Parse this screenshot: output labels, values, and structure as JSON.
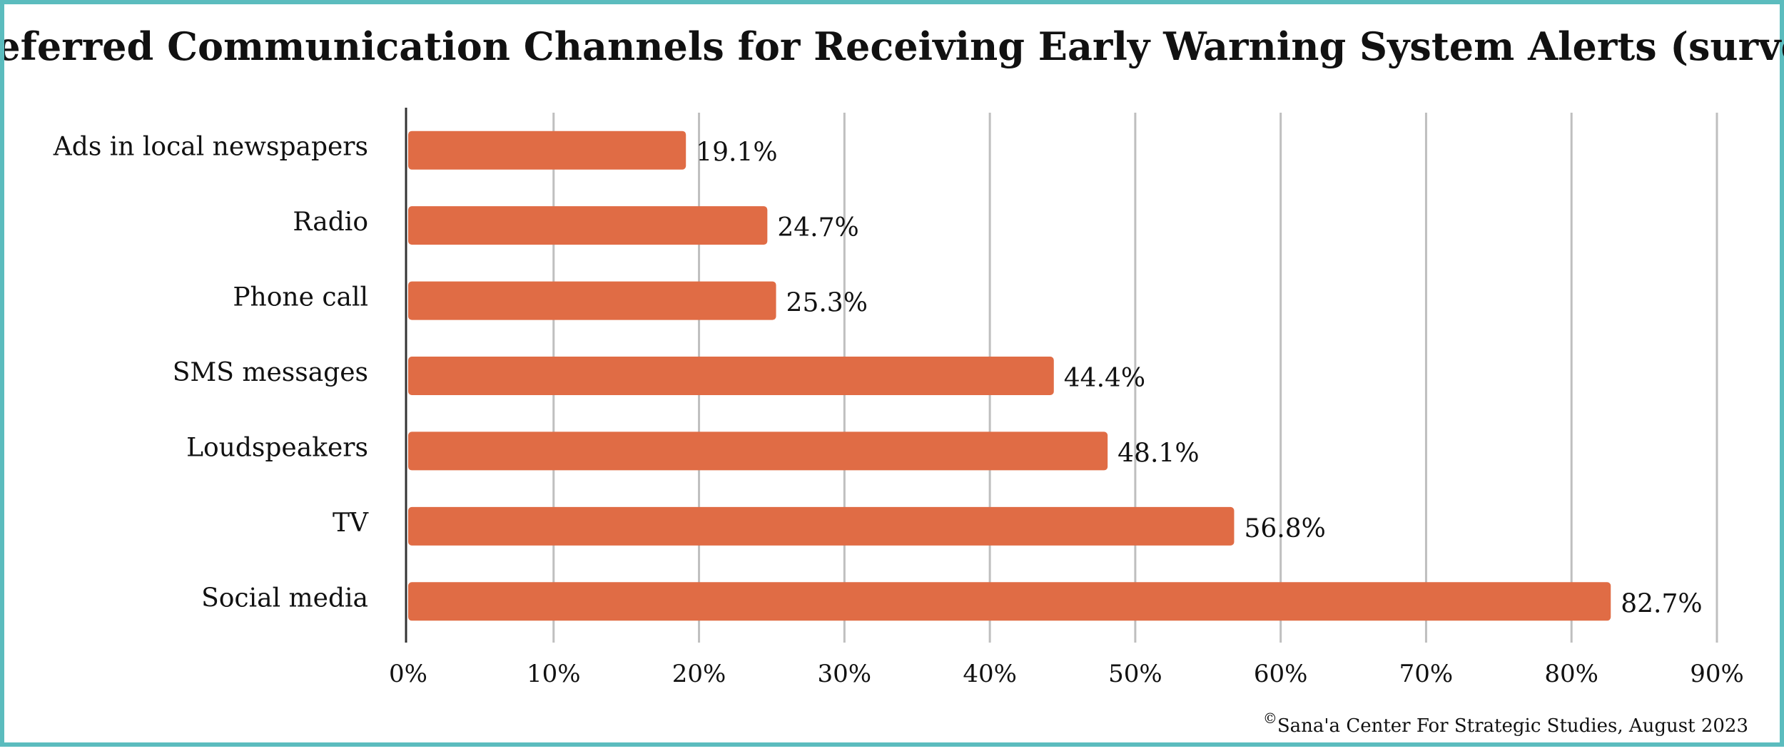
{
  "chart_data": {
    "type": "bar",
    "orientation": "horizontal",
    "title": "Preferred Communication Channels for Receiving Early Warning System Alerts (survey)",
    "categories": [
      "Ads in local newspapers",
      "Radio",
      "Phone call",
      "SMS messages",
      "Loudspeakers",
      "TV",
      "Social media"
    ],
    "values": [
      19.1,
      24.7,
      25.3,
      44.4,
      48.1,
      56.8,
      82.7
    ],
    "data_labels": [
      "19.1%",
      "24.7%",
      "25.3%",
      "44.4%",
      "48.1%",
      "56.8%",
      "82.7%"
    ],
    "xlim": [
      0,
      90
    ],
    "x_ticks": [
      0,
      10,
      20,
      30,
      40,
      50,
      60,
      70,
      80,
      90
    ],
    "x_tick_labels": [
      "0%",
      "10%",
      "20%",
      "30%",
      "40%",
      "50%",
      "60%",
      "70%",
      "80%",
      "90%"
    ],
    "grid": "vertical",
    "bar_color": "#e06c45",
    "grid_color": "#bfbfbf",
    "frame_color": "#5bbcbe",
    "legend": "none"
  },
  "credit": {
    "symbol": "©",
    "text": "Sana'a Center For Strategic Studies, August 2023"
  }
}
